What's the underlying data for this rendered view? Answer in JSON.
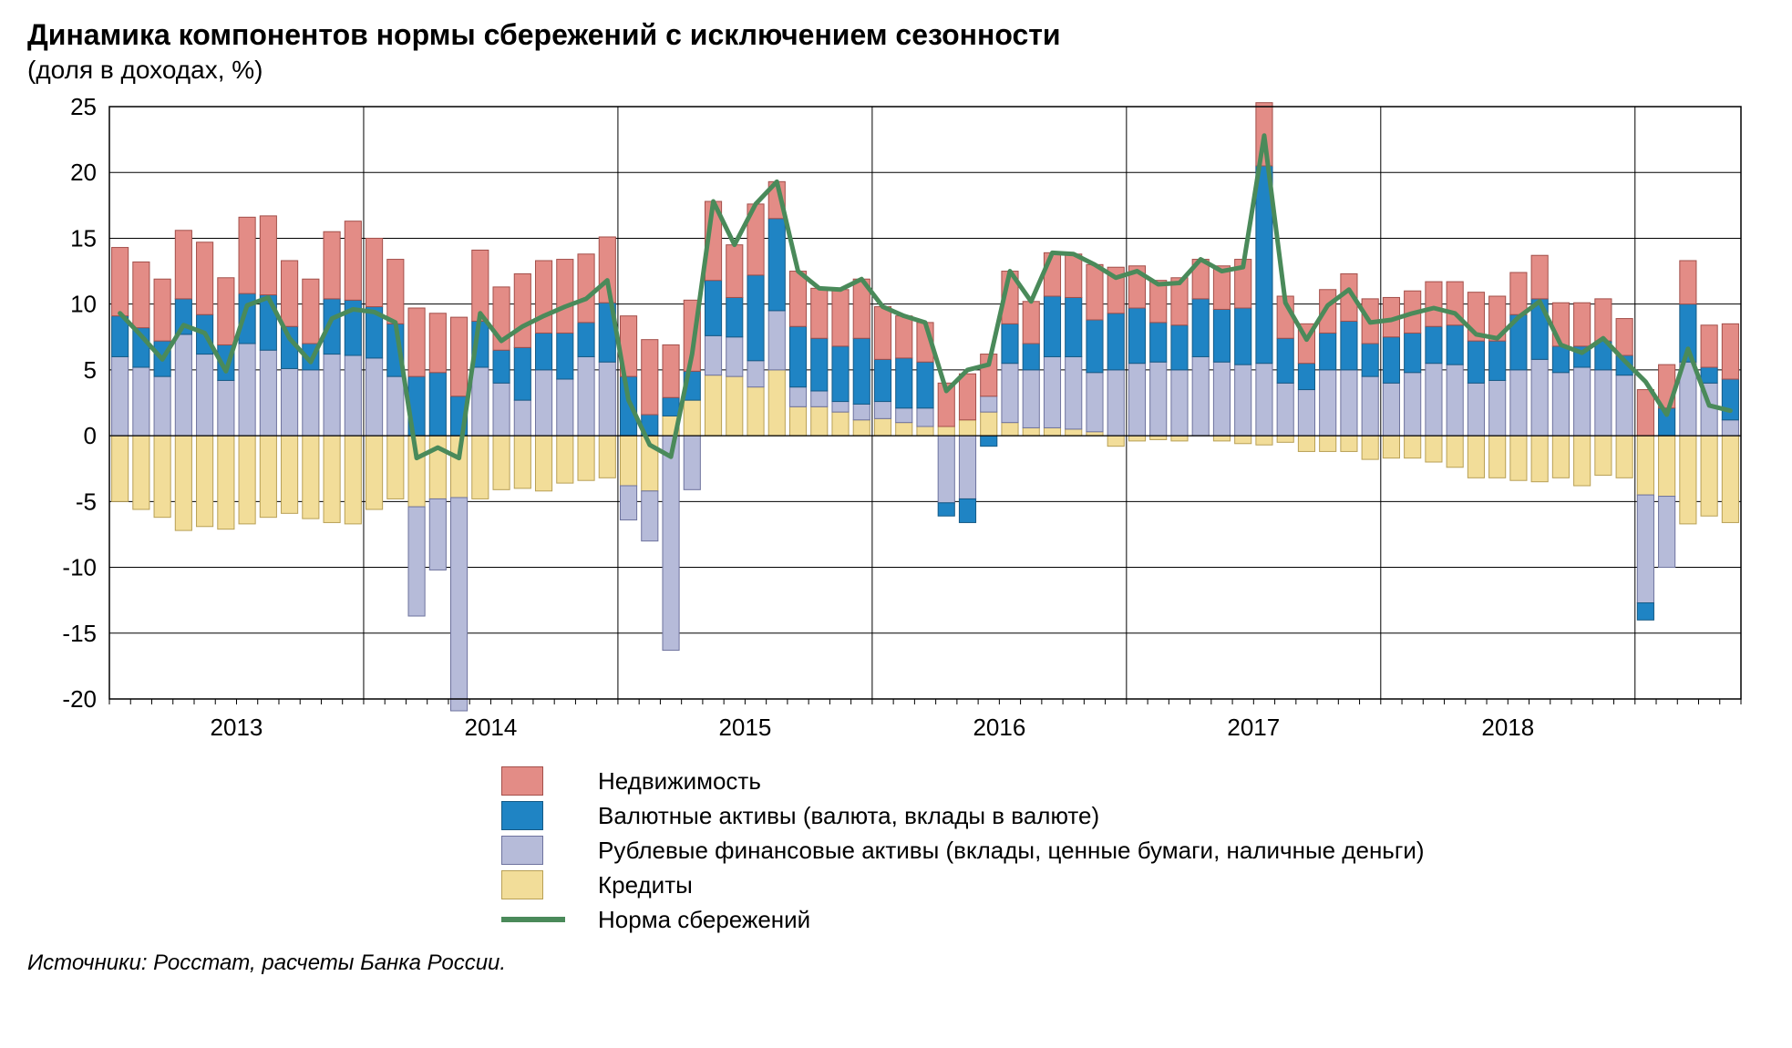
{
  "title": "Динамика компонентов нормы сбережений с исключением сезонности",
  "subtitle": "(доля в доходах, %)",
  "source": "Источники: Росстат, расчеты Банка России.",
  "chart": {
    "type": "stacked-bar-with-line",
    "background_color": "#ffffff",
    "plot_border_color": "#000000",
    "grid_color": "#000000",
    "grid_major_x_indices": [
      12,
      24,
      36,
      48,
      60,
      72
    ],
    "year_labels": [
      "2013",
      "2014",
      "2015",
      "2016",
      "2017",
      "2018"
    ],
    "year_label_indices": [
      6,
      18,
      30,
      42,
      54,
      66,
      75
    ],
    "ylim": [
      -20,
      25
    ],
    "ytick_step": 5,
    "yticks": [
      -20,
      -15,
      -10,
      -5,
      0,
      5,
      10,
      15,
      20,
      25
    ],
    "axis_fontsize": 26,
    "bar_width_ratio": 0.78,
    "series": {
      "realestate": {
        "label": "Недвижимость",
        "color": "#e38c86",
        "stroke": "#a34f4a",
        "values": [
          5.2,
          5.0,
          4.7,
          5.2,
          5.5,
          5.1,
          5.8,
          6.0,
          5.0,
          4.9,
          5.1,
          6.0,
          5.2,
          4.9,
          5.2,
          4.5,
          6.0,
          5.4,
          4.8,
          5.6,
          5.5,
          5.6,
          5.2,
          5.0,
          4.6,
          5.7,
          4.0,
          5.4,
          6.0,
          4.0,
          5.4,
          2.8,
          4.2,
          3.8,
          4.3,
          4.5,
          4.0,
          3.2,
          3.0,
          3.3,
          3.5,
          3.2,
          4.0,
          3.2,
          3.3,
          3.3,
          4.2,
          3.5,
          3.2,
          3.2,
          3.6,
          3.0,
          3.3,
          3.7,
          4.8,
          3.2,
          3.0,
          3.3,
          3.6,
          3.4,
          3.0,
          3.2,
          3.4,
          3.3,
          3.7,
          3.4,
          3.2,
          3.3,
          3.3,
          3.3,
          3.2,
          2.8,
          3.5,
          3.3,
          3.3,
          3.2,
          4.2
        ]
      },
      "fx": {
        "label": "Валютные активы (валюта, вклады в валюте)",
        "color": "#1f84c4",
        "stroke": "#155a86",
        "values": [
          3.1,
          3.0,
          2.7,
          2.7,
          3.0,
          2.7,
          3.8,
          4.2,
          3.2,
          2.0,
          4.2,
          4.2,
          3.9,
          4.0,
          4.5,
          4.8,
          3.0,
          3.5,
          2.5,
          4.0,
          2.8,
          3.5,
          2.6,
          4.5,
          4.5,
          1.6,
          1.4,
          2.2,
          4.2,
          3.0,
          6.5,
          7.0,
          4.6,
          4.0,
          4.2,
          5.0,
          3.2,
          3.8,
          3.5,
          -1.0,
          -1.8,
          -0.8,
          3.0,
          2.0,
          4.6,
          4.5,
          4.0,
          4.3,
          4.2,
          3.0,
          3.4,
          4.4,
          4.0,
          4.3,
          15.0,
          3.4,
          2.0,
          2.8,
          3.7,
          2.5,
          3.5,
          3.0,
          2.8,
          3.0,
          3.2,
          3.0,
          4.2,
          4.6,
          2.0,
          1.6,
          2.2,
          1.5,
          -1.3,
          2.1,
          4.4,
          1.2,
          3.1
        ]
      },
      "rub": {
        "label": "Рублевые финансовые активы (вклады, ценные бумаги, наличные деньги)",
        "color": "#b6bbd9",
        "stroke": "#6e739e",
        "values": [
          6.0,
          5.2,
          4.5,
          7.7,
          6.2,
          4.2,
          7.0,
          6.5,
          5.1,
          5.0,
          6.2,
          6.1,
          5.9,
          4.5,
          -8.3,
          -5.4,
          -16.2,
          5.2,
          4.0,
          2.7,
          5.0,
          4.3,
          6.0,
          5.6,
          -2.6,
          -3.8,
          -16.3,
          -4.1,
          3.0,
          3.0,
          2.0,
          4.5,
          1.5,
          1.2,
          0.8,
          1.2,
          1.3,
          1.1,
          1.4,
          -5.1,
          -4.8,
          1.2,
          4.5,
          4.4,
          5.4,
          5.5,
          4.5,
          5.0,
          5.5,
          5.6,
          5.0,
          6.0,
          5.6,
          5.4,
          5.5,
          4.0,
          3.5,
          5.0,
          5.0,
          4.5,
          4.0,
          4.8,
          5.5,
          5.4,
          4.0,
          4.2,
          5.0,
          5.8,
          4.8,
          5.2,
          5.0,
          4.6,
          -8.2,
          -5.4,
          5.6,
          4.0,
          1.2
        ]
      },
      "credits": {
        "label": "Кредиты",
        "color": "#f2dd99",
        "stroke": "#b8a056",
        "values": [
          -5.0,
          -5.6,
          -6.2,
          -7.2,
          -6.9,
          -7.1,
          -6.7,
          -6.2,
          -5.9,
          -6.3,
          -6.6,
          -6.7,
          -5.6,
          -4.8,
          -5.4,
          -4.8,
          -4.7,
          -4.8,
          -4.1,
          -4.0,
          -4.2,
          -3.6,
          -3.4,
          -3.2,
          -3.8,
          -4.2,
          1.5,
          2.7,
          4.6,
          4.5,
          3.7,
          5.0,
          2.2,
          2.2,
          1.8,
          1.2,
          1.3,
          1.0,
          0.7,
          0.7,
          1.2,
          1.8,
          1.0,
          0.6,
          0.6,
          0.5,
          0.3,
          -0.8,
          -0.4,
          -0.3,
          -0.4,
          0.0,
          -0.4,
          -0.6,
          -0.7,
          -0.5,
          -1.2,
          -1.2,
          -1.2,
          -1.8,
          -1.7,
          -1.7,
          -2.0,
          -2.4,
          -3.2,
          -3.2,
          -3.4,
          -3.5,
          -3.2,
          -3.8,
          -3.0,
          -3.2,
          -4.5,
          -4.6,
          -6.7,
          -6.1,
          -6.6
        ]
      }
    },
    "line": {
      "label": "Норма сбережений",
      "color": "#4a8a5a",
      "width": 5,
      "values": [
        9.3,
        7.6,
        5.8,
        8.4,
        7.8,
        4.9,
        9.9,
        10.5,
        7.4,
        5.6,
        8.9,
        9.6,
        9.4,
        8.6,
        -1.7,
        -0.9,
        -1.7,
        9.3,
        7.2,
        8.3,
        9.1,
        9.8,
        10.4,
        11.8,
        2.7,
        -0.7,
        -1.6,
        6.2,
        17.8,
        14.5,
        17.6,
        19.3,
        12.5,
        11.2,
        11.1,
        11.9,
        9.8,
        9.1,
        8.6,
        3.4,
        5.0,
        5.4,
        12.5,
        10.2,
        13.9,
        13.8,
        13.0,
        12.0,
        12.5,
        11.5,
        11.6,
        13.4,
        12.5,
        12.8,
        22.8,
        10.1,
        7.3,
        9.9,
        11.1,
        8.6,
        8.8,
        9.3,
        9.7,
        9.3,
        7.7,
        7.4,
        9.0,
        10.2,
        6.9,
        6.3,
        7.4,
        5.7,
        4.1,
        1.6,
        6.6,
        2.3,
        1.9
      ]
    },
    "legend_items": [
      {
        "type": "box",
        "series": "realestate"
      },
      {
        "type": "box",
        "series": "fx"
      },
      {
        "type": "box",
        "series": "rub"
      },
      {
        "type": "box",
        "series": "credits"
      },
      {
        "type": "line",
        "series": "line"
      }
    ]
  }
}
